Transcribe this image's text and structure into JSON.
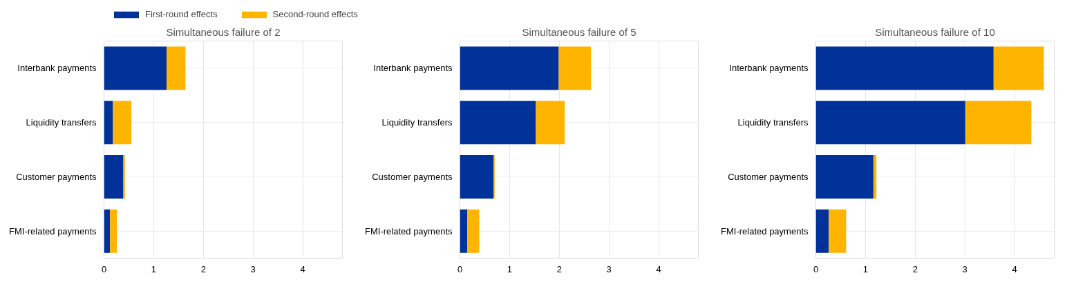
{
  "chart_data": [
    {
      "type": "bar",
      "orientation": "horizontal",
      "stacked": true,
      "title": "Simultaneous failure of 2",
      "categories": [
        "Interbank payments",
        "Liquidity transfers",
        "Customer payments",
        "FMI-related payments"
      ],
      "series": [
        {
          "name": "First-round effects",
          "color": "#003299",
          "values": [
            1.26,
            0.18,
            0.39,
            0.12
          ]
        },
        {
          "name": "Second-round effects",
          "color": "#ffb400",
          "values": [
            0.38,
            0.37,
            0.03,
            0.14
          ]
        }
      ],
      "xlim": [
        0,
        4.8
      ],
      "xticks": [
        0,
        1,
        2,
        3,
        4
      ],
      "grid": true,
      "legend": "top"
    },
    {
      "type": "bar",
      "orientation": "horizontal",
      "stacked": true,
      "title": "Simultaneous failure of 5",
      "categories": [
        "Interbank payments",
        "Liquidity transfers",
        "Customer payments",
        "FMI-related payments"
      ],
      "series": [
        {
          "color": "#003299",
          "values": [
            1.99,
            1.53,
            0.68,
            0.15
          ]
        },
        {
          "color": "#ffb400",
          "values": [
            0.65,
            0.58,
            0.02,
            0.24
          ]
        }
      ],
      "xlim": [
        0,
        4.8
      ],
      "xticks": [
        0,
        1,
        2,
        3,
        4
      ],
      "grid": true
    },
    {
      "type": "bar",
      "orientation": "horizontal",
      "stacked": true,
      "title": "Simultaneous failure of 10",
      "categories": [
        "Interbank payments",
        "Liquidity transfers",
        "Customer payments",
        "FMI-related payments"
      ],
      "series": [
        {
          "color": "#003299",
          "values": [
            3.58,
            3.01,
            1.16,
            0.26
          ]
        },
        {
          "color": "#ffb400",
          "values": [
            1.01,
            1.33,
            0.06,
            0.35
          ]
        }
      ],
      "xlim": [
        0,
        4.8
      ],
      "xticks": [
        0,
        1,
        2,
        3,
        4
      ],
      "grid": true
    }
  ]
}
